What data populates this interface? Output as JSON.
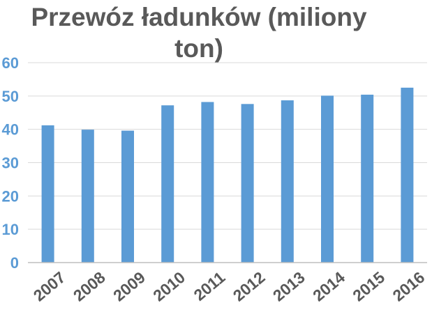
{
  "chart_data": {
    "type": "bar",
    "title_lines": [
      "Przewóz ładunków (miliony",
      "ton)"
    ],
    "categories": [
      "2007",
      "2008",
      "2009",
      "2010",
      "2011",
      "2012",
      "2013",
      "2014",
      "2015",
      "2016"
    ],
    "values": [
      41.2,
      39.9,
      39.6,
      47.2,
      48.2,
      47.6,
      48.7,
      50.1,
      50.4,
      52.5
    ],
    "ylim": [
      0,
      60
    ],
    "yticks": [
      0,
      10,
      20,
      30,
      40,
      50,
      60
    ],
    "grid": true,
    "legend": "none",
    "colors": {
      "bar": "#5b9bd5",
      "ytick": "#5b9bd5",
      "xtick": "#595959",
      "title": "#595959",
      "grid": "#d9d9d9"
    }
  }
}
